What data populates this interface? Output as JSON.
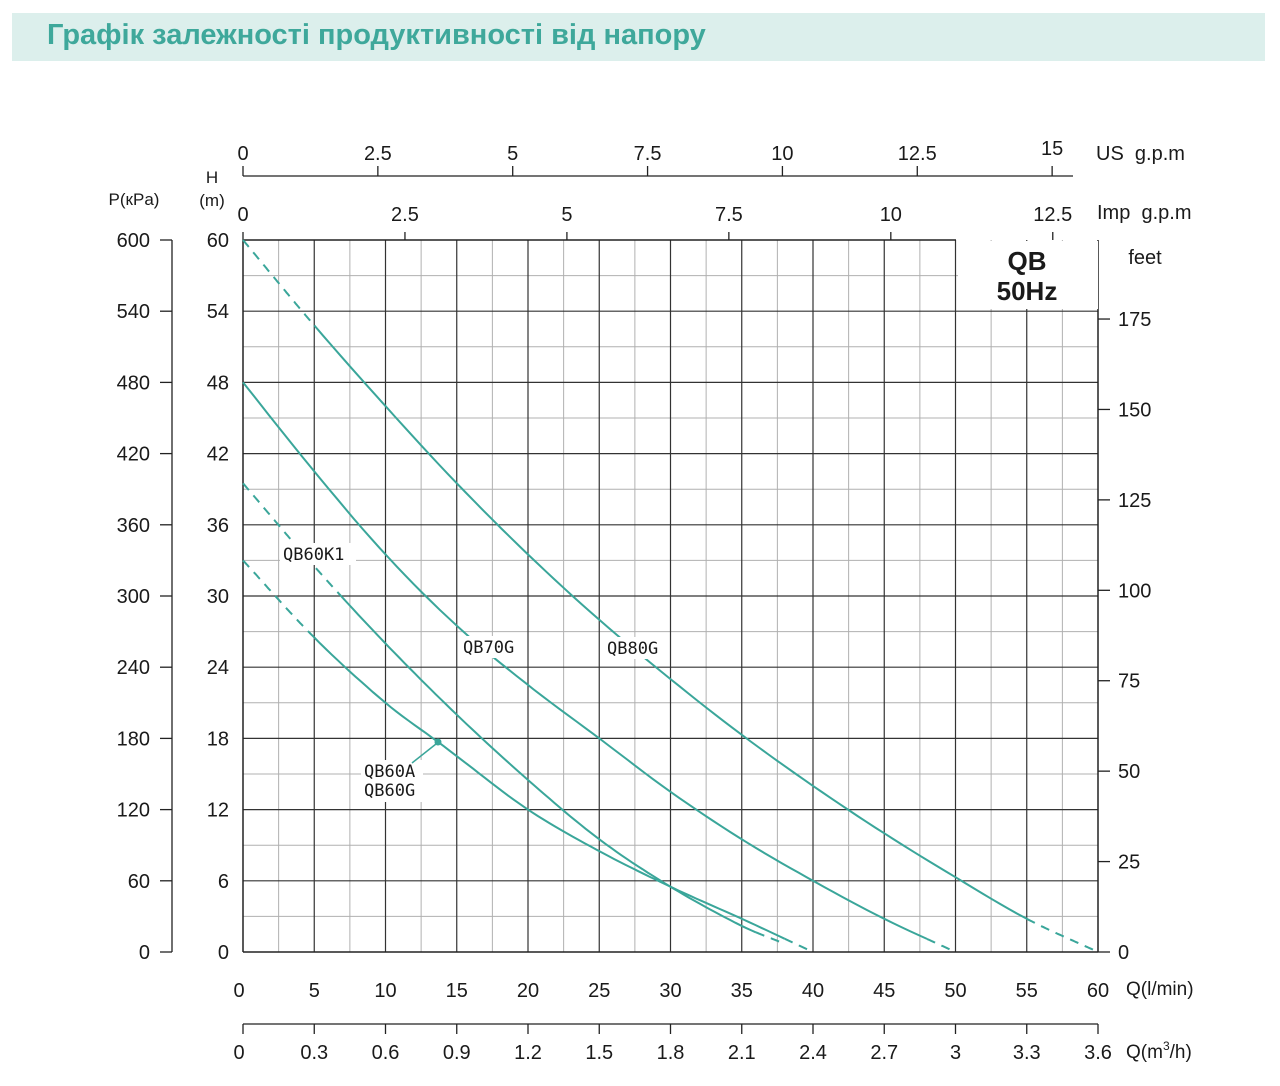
{
  "header": {
    "title": "Графік залежності продуктивності від напору"
  },
  "chart_data": {
    "type": "line",
    "title": "QB",
    "subtitle": "50Hz",
    "x_axis": {
      "label": "Q(l/min)",
      "range": [
        0,
        60
      ],
      "ticks": [
        "0",
        "5",
        "10",
        "15",
        "20",
        "25",
        "30",
        "35",
        "40",
        "45",
        "50",
        "55",
        "60"
      ]
    },
    "x_axis_m3h": {
      "label_main": "Q(m",
      "label_sup": "3",
      "label_end": "/h)",
      "range": [
        0,
        3.6
      ],
      "ticks": [
        "0",
        "0.3",
        "0.6",
        "0.9",
        "1.2",
        "1.5",
        "1.8",
        "2.1",
        "2.4",
        "2.7",
        "3",
        "3.3",
        "3.6"
      ]
    },
    "x_axis_us_gpm": {
      "label": "US  g.p.m",
      "ticks": [
        "0",
        "2.5",
        "5",
        "7.5",
        "10",
        "12.5",
        "15"
      ],
      "values": [
        0,
        2.5,
        5,
        7.5,
        10,
        12.5,
        15
      ]
    },
    "x_axis_imp_gpm": {
      "label": "Imp  g.p.m",
      "ticks": [
        "0",
        "2.5",
        "5",
        "7.5",
        "10",
        "12.5"
      ],
      "values": [
        0,
        2.5,
        5,
        7.5,
        10,
        12.5
      ]
    },
    "y_axis": {
      "label_line1": "H",
      "label_line2": "(m)",
      "range": [
        0,
        60
      ],
      "ticks": [
        "0",
        "6",
        "12",
        "18",
        "24",
        "30",
        "36",
        "42",
        "48",
        "54",
        "60"
      ]
    },
    "y_axis_kpa": {
      "label": "P(кPa)",
      "ticks": [
        "0",
        "60",
        "120",
        "180",
        "240",
        "300",
        "360",
        "420",
        "480",
        "540",
        "600"
      ]
    },
    "y_axis_feet": {
      "label": "feet",
      "ticks": [
        "0",
        "25",
        "50",
        "75",
        "100",
        "125",
        "150",
        "175"
      ],
      "values": [
        0,
        25,
        50,
        75,
        100,
        125,
        150,
        175
      ]
    },
    "grid": true,
    "series": [
      {
        "name": "QB80G",
        "x": [
          0,
          5,
          10,
          15,
          20,
          25,
          30,
          35,
          40,
          45,
          50,
          55,
          60
        ],
        "y": [
          60,
          52.8,
          46,
          39.5,
          33.5,
          28,
          23,
          18.3,
          14,
          10,
          6.3,
          2.8,
          0
        ],
        "dashed_until_x": 5,
        "dashed_from_x": 55
      },
      {
        "name": "QB70G",
        "x": [
          0,
          5,
          10,
          15,
          20,
          25,
          30,
          35,
          40,
          45,
          50
        ],
        "y": [
          48,
          40.5,
          33.5,
          27.5,
          22.5,
          18,
          13.5,
          9.5,
          6,
          2.8,
          0
        ],
        "dashed_until_x": 0,
        "dashed_from_x": 48
      },
      {
        "name": "QB60K1",
        "x": [
          0,
          5,
          10,
          15,
          20,
          25,
          30,
          35,
          38
        ],
        "y": [
          39.5,
          32.5,
          26,
          20,
          14.5,
          9.5,
          5.5,
          2.2,
          0.7
        ],
        "dashed_until_x": 7,
        "dashed_from_x": 36
      },
      {
        "name": "QB60A / QB60G",
        "x": [
          0,
          5,
          10,
          13.8,
          15,
          20,
          25,
          30,
          35,
          40
        ],
        "y": [
          33,
          26.5,
          21,
          17.6,
          16.5,
          12,
          8.5,
          5.5,
          2.8,
          0
        ],
        "dashed_until_x": 5,
        "dashed_from_x": 38
      }
    ],
    "annotations": [
      {
        "text": "QB60K1"
      },
      {
        "text": "QB70G"
      },
      {
        "text": "QB80G"
      },
      {
        "text_line1": "QB60A",
        "text_line2": "QB60G"
      }
    ],
    "line_color": "#3aa69a",
    "legend_box": "top-right"
  }
}
